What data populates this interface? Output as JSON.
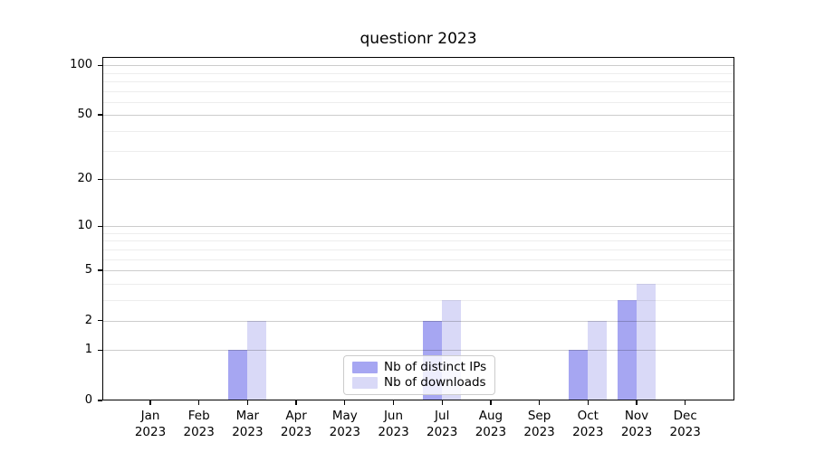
{
  "figure": {
    "title": "questionr 2023"
  },
  "chart_data": {
    "type": "bar",
    "title": "questionr 2023",
    "x_categories": [
      {
        "month": "Jan",
        "year": "2023"
      },
      {
        "month": "Feb",
        "year": "2023"
      },
      {
        "month": "Mar",
        "year": "2023"
      },
      {
        "month": "Apr",
        "year": "2023"
      },
      {
        "month": "May",
        "year": "2023"
      },
      {
        "month": "Jun",
        "year": "2023"
      },
      {
        "month": "Jul",
        "year": "2023"
      },
      {
        "month": "Aug",
        "year": "2023"
      },
      {
        "month": "Sep",
        "year": "2023"
      },
      {
        "month": "Oct",
        "year": "2023"
      },
      {
        "month": "Nov",
        "year": "2023"
      },
      {
        "month": "Dec",
        "year": "2023"
      }
    ],
    "series": [
      {
        "name": "Nb of distinct IPs",
        "color": "#a6a6f2",
        "values": [
          0,
          0,
          1,
          0,
          0,
          0,
          2,
          0,
          0,
          1,
          3,
          0
        ]
      },
      {
        "name": "Nb of downloads",
        "color": "#d9d9f7",
        "values": [
          0,
          0,
          2,
          0,
          0,
          0,
          3,
          0,
          0,
          2,
          4,
          0
        ]
      }
    ],
    "y_axis": {
      "scale": "log10(1+v)",
      "major_ticks": [
        100,
        50,
        20,
        10,
        5,
        2,
        1,
        0
      ],
      "minor_ticks": [
        3,
        4,
        6,
        7,
        8,
        9,
        30,
        40,
        60,
        70,
        80,
        90
      ],
      "top_value": 113
    },
    "xlabel": "",
    "ylabel": "",
    "grid": "on (major and minor horizontal)",
    "legend_position": "lower center, inside plot"
  }
}
